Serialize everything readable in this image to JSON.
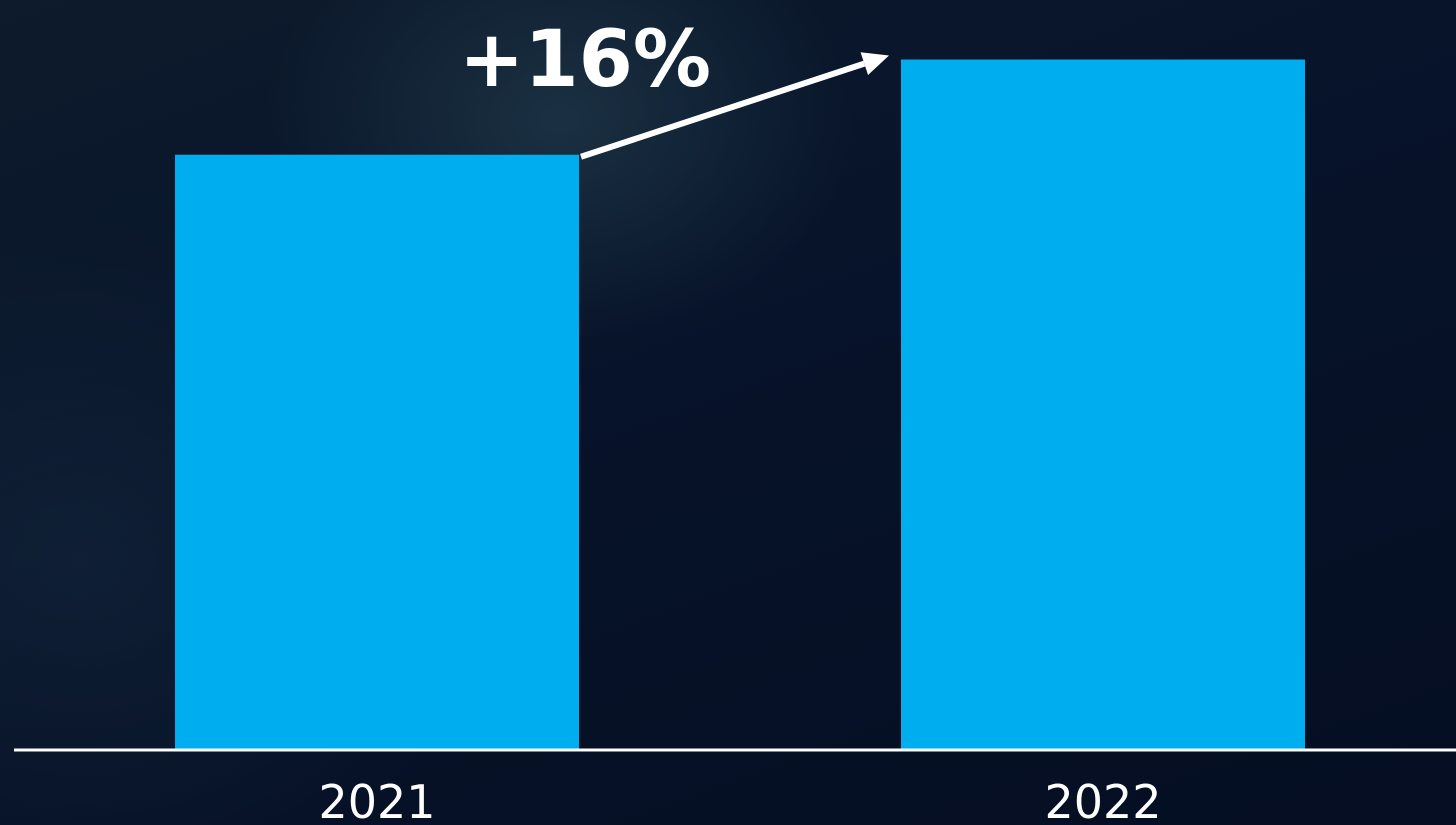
{
  "chart_data": {
    "type": "bar",
    "categories": [
      "2021",
      "2022"
    ],
    "values": [
      100,
      116
    ],
    "ylim": [
      0,
      126
    ],
    "title": "",
    "xlabel": "",
    "ylabel": "",
    "grid": false,
    "annotation": {
      "text": "+16%",
      "from_category": "2021",
      "to_category": "2022"
    },
    "colors": {
      "bar": "#00aeef",
      "axis": "#ffffff",
      "text": "#ffffff",
      "background": "#07132a"
    }
  }
}
